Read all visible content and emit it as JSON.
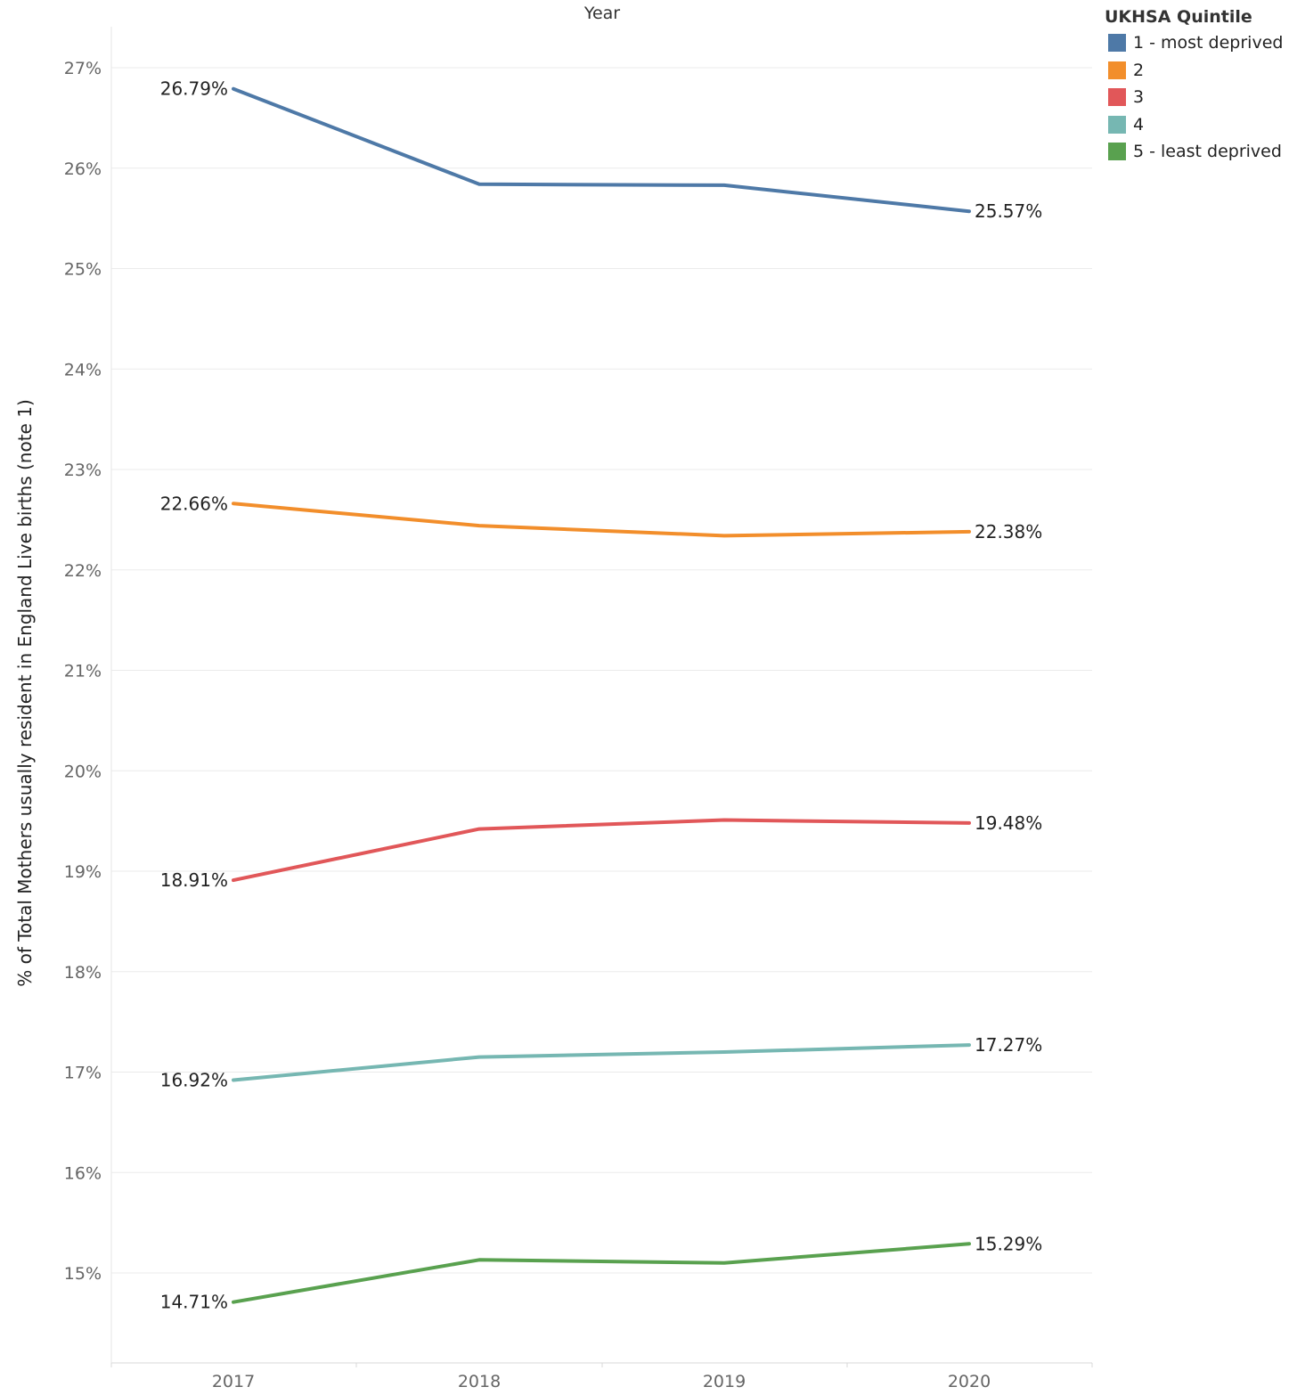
{
  "chart_data": {
    "type": "line",
    "xlabel": "Year",
    "ylabel": "% of Total Mothers usually resident in England  Live births (note 1)",
    "categories": [
      "2017",
      "2018",
      "2019",
      "2020"
    ],
    "ylim": [
      14.1,
      27.4
    ],
    "y_ticks": [
      27,
      26,
      25,
      24,
      23,
      22,
      21,
      20,
      19,
      18,
      17,
      16,
      15
    ],
    "y_tick_labels": [
      "27%",
      "26%",
      "25%",
      "24%",
      "23%",
      "22%",
      "21%",
      "20%",
      "19%",
      "18%",
      "17%",
      "16%",
      "15%"
    ],
    "grid": "horizontal",
    "legend_title": "UKHSA Quintile",
    "legend_position": "top-right",
    "series": [
      {
        "name": "1 - most deprived",
        "color": "#4e79a7",
        "values": [
          26.79,
          25.84,
          25.83,
          25.57
        ],
        "start_label": "26.79%",
        "end_label": "25.57%"
      },
      {
        "name": "2",
        "color": "#f28e2b",
        "values": [
          22.66,
          22.44,
          22.34,
          22.38
        ],
        "start_label": "22.66%",
        "end_label": "22.38%"
      },
      {
        "name": "3",
        "color": "#e15759",
        "values": [
          18.91,
          19.42,
          19.51,
          19.48
        ],
        "start_label": "18.91%",
        "end_label": "19.48%"
      },
      {
        "name": "4",
        "color": "#76b7b2",
        "values": [
          16.92,
          17.15,
          17.2,
          17.27
        ],
        "start_label": "16.92%",
        "end_label": "17.27%"
      },
      {
        "name": "5 - least deprived",
        "color": "#59a14f",
        "values": [
          14.71,
          15.13,
          15.1,
          15.29
        ],
        "start_label": "14.71%",
        "end_label": "15.29%"
      }
    ]
  }
}
